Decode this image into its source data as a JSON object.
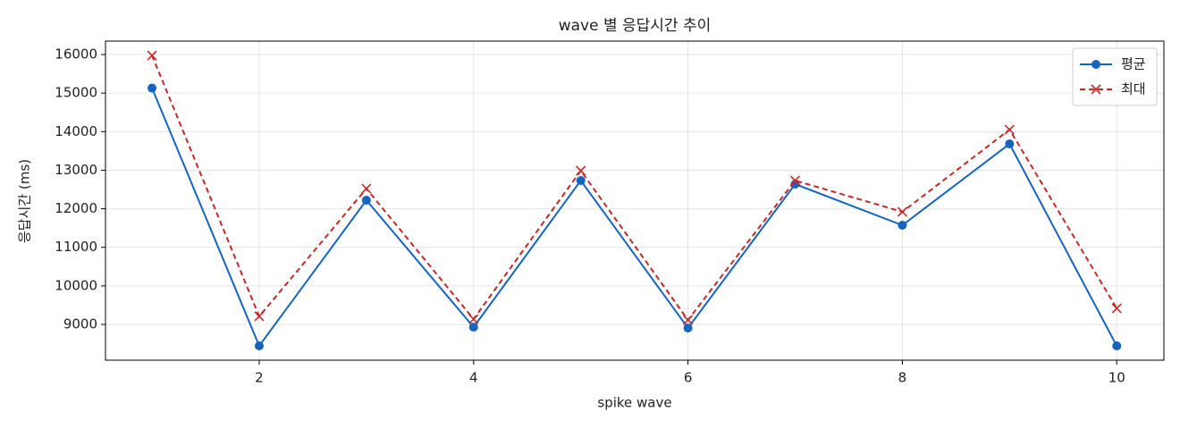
{
  "chart_data": {
    "type": "line",
    "title": "wave 별 응답시간 추이",
    "xlabel": "spike wave",
    "ylabel": "응답시간 (ms)",
    "x": [
      1,
      2,
      3,
      4,
      5,
      6,
      7,
      8,
      9,
      10
    ],
    "series": [
      {
        "name": "평균",
        "color": "#1565c0",
        "marker": "o",
        "dash": false,
        "values": [
          15130,
          8444,
          12222,
          8930,
          12732,
          8907,
          12639,
          11573,
          13682,
          8444
        ]
      },
      {
        "name": "최대",
        "color": "#c62828",
        "marker": "x",
        "dash": true,
        "values": [
          15977,
          9209,
          12523,
          9139,
          12987,
          9116,
          12732,
          11920,
          14053,
          9417
        ]
      }
    ],
    "xlim": [
      0.566,
      10.44
    ],
    "xticks": [
      2,
      4,
      6,
      8,
      10
    ],
    "ylim": [
      8073,
      16348
    ],
    "yticks": [
      9000,
      10000,
      11000,
      12000,
      13000,
      14000,
      15000,
      16000
    ],
    "grid": true,
    "legend": "upper right"
  }
}
